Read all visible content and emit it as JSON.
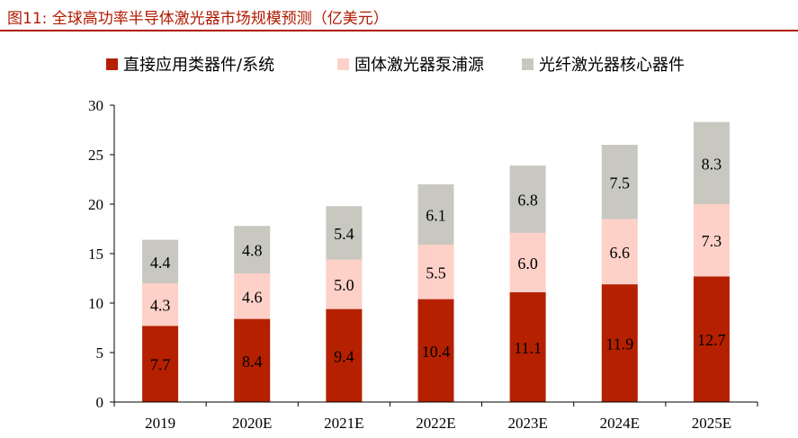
{
  "header": {
    "title": "图11:    全球高功率半导体激光器市场规模预测（亿美元）",
    "accent_color": "#b01a00"
  },
  "chart_data": {
    "type": "bar",
    "stacked": true,
    "categories": [
      "2019",
      "2020E",
      "2021E",
      "2022E",
      "2023E",
      "2024E",
      "2025E"
    ],
    "series": [
      {
        "name": "直接应用类器件/系统",
        "color": "#b52000",
        "values": [
          7.7,
          8.4,
          9.4,
          10.4,
          11.1,
          11.9,
          12.7
        ]
      },
      {
        "name": "固体激光器泵浦源",
        "color": "#fdd0c8",
        "values": [
          4.3,
          4.6,
          5.0,
          5.5,
          6.0,
          6.6,
          7.3
        ]
      },
      {
        "name": "光纤激光器核心器件",
        "color": "#c8c8c0",
        "values": [
          4.4,
          4.8,
          5.4,
          6.1,
          6.8,
          7.5,
          8.3
        ]
      }
    ],
    "ylim": [
      0,
      30
    ],
    "yticks": [
      0,
      5,
      10,
      15,
      20,
      25,
      30
    ],
    "legend_position": "top",
    "grid": false
  }
}
